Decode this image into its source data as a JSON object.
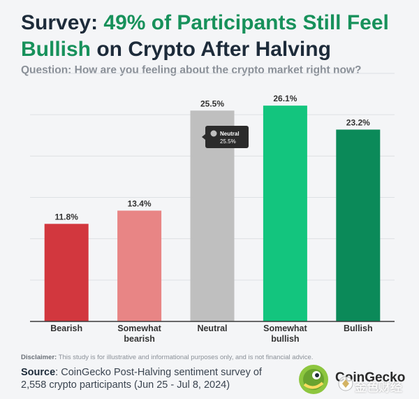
{
  "header": {
    "title_part1": "Survey: ",
    "title_part2": "49% of Participants Still Feel Bullish",
    "title_part3": " on Crypto After Halving",
    "question": "Question: How are you feeling about the crypto market right now?"
  },
  "chart_data": {
    "type": "bar",
    "title": "Survey: 49% of Participants Still Feel Bullish on Crypto After Halving",
    "subtitle": "Question: How are you feeling about the crypto market right now?",
    "categories": [
      "Bearish",
      "Somewhat bearish",
      "Neutral",
      "Somewhat bullish",
      "Bullish"
    ],
    "category_lines": [
      [
        "Bearish"
      ],
      [
        "Somewhat",
        "bearish"
      ],
      [
        "Neutral"
      ],
      [
        "Somewhat",
        "bullish"
      ],
      [
        "Bullish"
      ]
    ],
    "values": [
      11.8,
      13.4,
      25.5,
      26.1,
      23.2
    ],
    "value_labels": [
      "11.8%",
      "13.4%",
      "25.5%",
      "26.1%",
      "23.2%"
    ],
    "colors": [
      "#d2373e",
      "#e88585",
      "#bfbfbf",
      "#13c57e",
      "#0b8a59"
    ],
    "ylim": [
      0,
      30
    ],
    "gridlines": [
      5,
      10,
      15,
      20,
      25,
      30
    ],
    "y_ticks_visible": false,
    "grid": true,
    "tooltip": {
      "label": "Neutral",
      "value": "25.5%",
      "category_index": 2
    }
  },
  "footer": {
    "disclaimer_label": "Disclaimer:",
    "disclaimer_text": " This study is for illustrative and informational purposes only, and is not financial advice.",
    "source_label": "Source",
    "source_text": ": CoinGecko Post-Halving sentiment survey of 2,558 crypto participants (Jun 25 - Jul 8, 2024)",
    "logo_text": "CoinGecko",
    "logo_icon": "gecko-logo-icon",
    "watermark_text": "金色财经",
    "watermark_icon": "watermark-logo-icon"
  }
}
